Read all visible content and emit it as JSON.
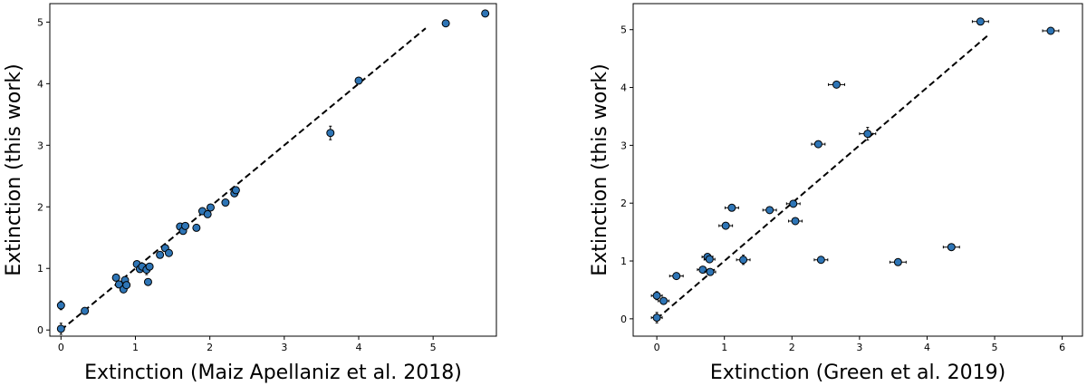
{
  "chart_data": [
    {
      "type": "scatter",
      "xlabel": "Extinction (Maiz Apellaniz et al. 2018)",
      "ylabel": "Extinction (this work)",
      "xlim": [
        -0.15,
        5.85
      ],
      "ylim": [
        -0.1,
        5.3
      ],
      "xticks": [
        0,
        1,
        2,
        3,
        4,
        5
      ],
      "yticks": [
        0,
        1,
        2,
        3,
        4,
        5
      ],
      "grid": false,
      "marker_color": "#2e75b6",
      "error_bars": "y",
      "fit_line": {
        "x": [
          0,
          4.9
        ],
        "y": [
          0,
          4.9
        ],
        "style": "dashed"
      },
      "points": [
        {
          "x": 0,
          "y": 0.02,
          "yerr": 0.09
        },
        {
          "x": 0,
          "y": 0.4,
          "yerr": 0.07
        },
        {
          "x": 0.32,
          "y": 0.31,
          "yerr": 0.03
        },
        {
          "x": 0.74,
          "y": 0.85,
          "yerr": 0.04
        },
        {
          "x": 0.78,
          "y": 0.74,
          "yerr": 0.04
        },
        {
          "x": 0.84,
          "y": 0.66,
          "yerr": 0.04
        },
        {
          "x": 0.86,
          "y": 0.81,
          "yerr": 0.04
        },
        {
          "x": 0.88,
          "y": 0.73,
          "yerr": 0.04
        },
        {
          "x": 1.02,
          "y": 1.07,
          "yerr": 0.04
        },
        {
          "x": 1.06,
          "y": 0.99,
          "yerr": 0.04
        },
        {
          "x": 1.09,
          "y": 1.03,
          "yerr": 0.04
        },
        {
          "x": 1.15,
          "y": 0.98,
          "yerr": 0.08
        },
        {
          "x": 1.17,
          "y": 0.78,
          "yerr": 0.04
        },
        {
          "x": 1.19,
          "y": 1.03,
          "yerr": 0.04
        },
        {
          "x": 1.33,
          "y": 1.22,
          "yerr": 0.04
        },
        {
          "x": 1.4,
          "y": 1.33,
          "yerr": 0.04
        },
        {
          "x": 1.45,
          "y": 1.25,
          "yerr": 0.04
        },
        {
          "x": 1.6,
          "y": 1.68,
          "yerr": 0.04
        },
        {
          "x": 1.64,
          "y": 1.61,
          "yerr": 0.04
        },
        {
          "x": 1.67,
          "y": 1.69,
          "yerr": 0.04
        },
        {
          "x": 1.82,
          "y": 1.66,
          "yerr": 0.04
        },
        {
          "x": 1.9,
          "y": 1.93,
          "yerr": 0.04
        },
        {
          "x": 1.97,
          "y": 1.88,
          "yerr": 0.04
        },
        {
          "x": 2.01,
          "y": 1.99,
          "yerr": 0.04
        },
        {
          "x": 2.21,
          "y": 2.07,
          "yerr": 0.04
        },
        {
          "x": 2.33,
          "y": 2.22,
          "yerr": 0.04
        },
        {
          "x": 2.35,
          "y": 2.27,
          "yerr": 0.04
        },
        {
          "x": 3.62,
          "y": 3.2,
          "yerr": 0.11
        },
        {
          "x": 4.0,
          "y": 4.05,
          "yerr": 0.04
        },
        {
          "x": 5.17,
          "y": 4.98,
          "yerr": 0.05
        },
        {
          "x": 5.7,
          "y": 5.14,
          "yerr": 0.05
        }
      ]
    },
    {
      "type": "scatter",
      "xlabel": "Extinction (Green et al. 2019)",
      "ylabel": "Extinction (this work)",
      "xlim": [
        -0.35,
        6.3
      ],
      "ylim": [
        -0.3,
        5.45
      ],
      "xticks": [
        0,
        1,
        2,
        3,
        4,
        5,
        6
      ],
      "yticks": [
        0,
        1,
        2,
        3,
        4,
        5
      ],
      "grid": false,
      "marker_color": "#2e75b6",
      "error_bars": "xy",
      "fit_line": {
        "x": [
          0,
          4.9
        ],
        "y": [
          0,
          4.9
        ],
        "style": "dashed"
      },
      "points": [
        {
          "x": 0.0,
          "y": 0.02,
          "xerr": 0.08,
          "yerr": 0.09
        },
        {
          "x": 0.0,
          "y": 0.4,
          "xerr": 0.08,
          "yerr": 0.07
        },
        {
          "x": 0.1,
          "y": 0.31,
          "xerr": 0.08,
          "yerr": 0.04
        },
        {
          "x": 0.29,
          "y": 0.74,
          "xerr": 0.1,
          "yerr": 0.04
        },
        {
          "x": 0.68,
          "y": 0.85,
          "xerr": 0.08,
          "yerr": 0.04
        },
        {
          "x": 0.75,
          "y": 1.07,
          "xerr": 0.08,
          "yerr": 0.04
        },
        {
          "x": 0.78,
          "y": 1.03,
          "xerr": 0.08,
          "yerr": 0.04
        },
        {
          "x": 0.79,
          "y": 0.81,
          "xerr": 0.08,
          "yerr": 0.04
        },
        {
          "x": 1.02,
          "y": 1.61,
          "xerr": 0.1,
          "yerr": 0.04
        },
        {
          "x": 1.11,
          "y": 1.92,
          "xerr": 0.1,
          "yerr": 0.04
        },
        {
          "x": 1.28,
          "y": 1.02,
          "xerr": 0.1,
          "yerr": 0.08
        },
        {
          "x": 1.67,
          "y": 1.88,
          "xerr": 0.1,
          "yerr": 0.04
        },
        {
          "x": 2.02,
          "y": 1.99,
          "xerr": 0.1,
          "yerr": 0.04
        },
        {
          "x": 2.05,
          "y": 1.69,
          "xerr": 0.1,
          "yerr": 0.04
        },
        {
          "x": 2.39,
          "y": 3.02,
          "xerr": 0.1,
          "yerr": 0.04
        },
        {
          "x": 2.43,
          "y": 1.02,
          "xerr": 0.1,
          "yerr": 0.04
        },
        {
          "x": 2.66,
          "y": 4.05,
          "xerr": 0.12,
          "yerr": 0.04
        },
        {
          "x": 3.12,
          "y": 3.2,
          "xerr": 0.12,
          "yerr": 0.11
        },
        {
          "x": 3.57,
          "y": 0.98,
          "xerr": 0.12,
          "yerr": 0.04
        },
        {
          "x": 4.36,
          "y": 1.24,
          "xerr": 0.12,
          "yerr": 0.04
        },
        {
          "x": 4.79,
          "y": 5.14,
          "xerr": 0.12,
          "yerr": 0.05
        },
        {
          "x": 5.83,
          "y": 4.98,
          "xerr": 0.12,
          "yerr": 0.05
        }
      ]
    }
  ]
}
